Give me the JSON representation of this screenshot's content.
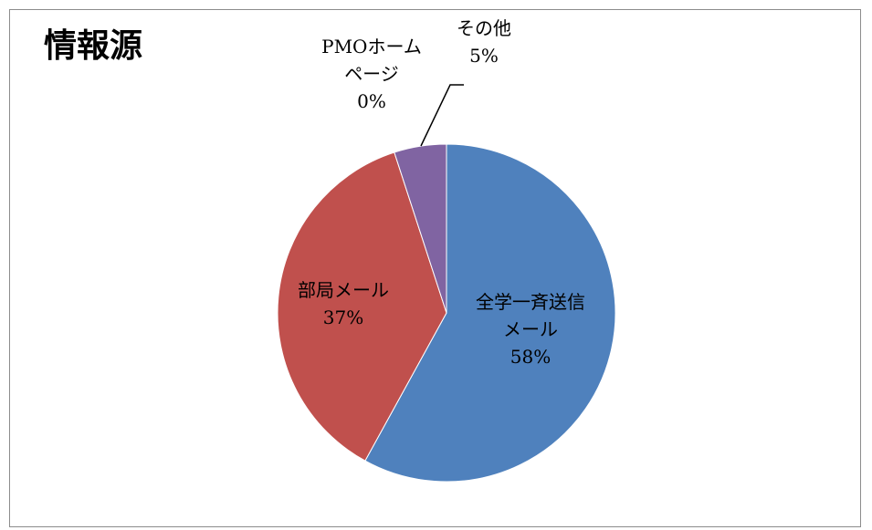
{
  "title": "情報源",
  "chart_data": {
    "type": "pie",
    "title": "情報源",
    "slices": [
      {
        "name": "全学一斉送信メール",
        "label_lines": [
          "全学一斉送信",
          "メール"
        ],
        "value": 58,
        "percent_label": "58%",
        "color": "#4f81bd"
      },
      {
        "name": "部局メール",
        "label_lines": [
          "部局メール"
        ],
        "value": 37,
        "percent_label": "37%",
        "color": "#c0504d"
      },
      {
        "name": "PMOホームページ",
        "label_lines": [
          "PMOホーム",
          "ページ"
        ],
        "value": 0,
        "percent_label": "0%",
        "color": "#9bbb59"
      },
      {
        "name": "その他",
        "label_lines": [
          "その他"
        ],
        "value": 5,
        "percent_label": "5%",
        "color": "#8064a2"
      }
    ],
    "legend": "none",
    "start_angle_deg": 0,
    "direction": "clockwise"
  }
}
